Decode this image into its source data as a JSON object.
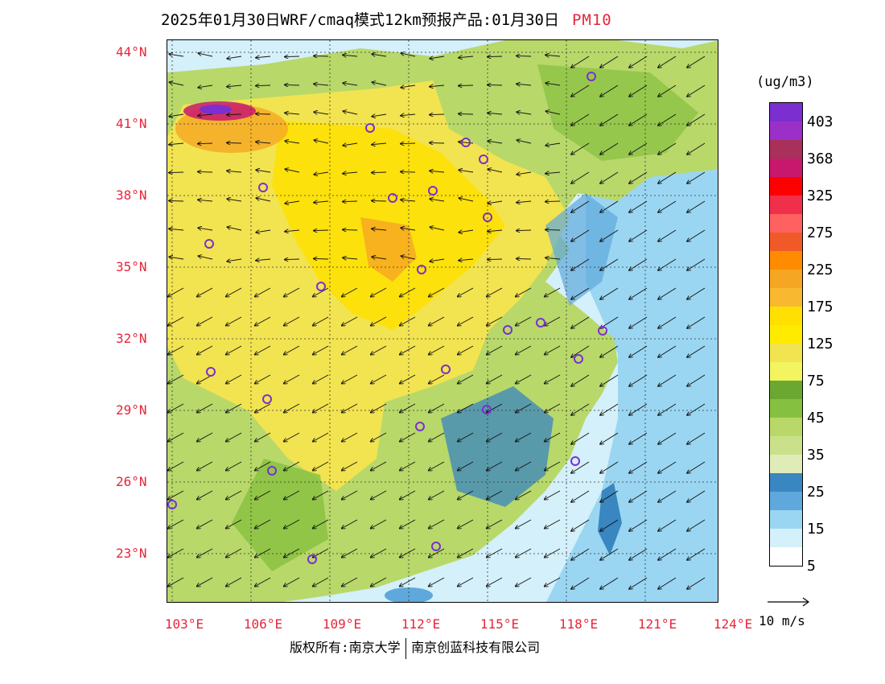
{
  "title": {
    "main": "2025年01月30日WRF/cmaq模式12km预报产品:01月30日",
    "pollutant": "PM10"
  },
  "map": {
    "lat_labels": [
      "44°N",
      "41°N",
      "38°N",
      "35°N",
      "32°N",
      "29°N",
      "26°N",
      "23°N"
    ],
    "lon_labels": [
      "103°E",
      "106°E",
      "109°E",
      "112°E",
      "115°E",
      "118°E",
      "121°E",
      "124°E"
    ],
    "lon_range": [
      103,
      124
    ],
    "lat_range": [
      21,
      44.5
    ]
  },
  "colorbar": {
    "unit": "(ug/m3)",
    "levels": [
      "403",
      "368",
      "325",
      "275",
      "225",
      "175",
      "125",
      "75",
      "45",
      "35",
      "25",
      "15",
      "5"
    ],
    "colors": [
      "#7b2fd0",
      "#9b30c8",
      "#a8305a",
      "#c8186e",
      "#ff0000",
      "#f0304a",
      "#ff6060",
      "#f05a28",
      "#ff8c00",
      "#f5a623",
      "#f8b830",
      "#ffe000",
      "#ffeb00",
      "#f2e350",
      "#f2f560",
      "#6aa832",
      "#86c040",
      "#b8d86a",
      "#cbe08a",
      "#e0ecb8",
      "#3a86c0",
      "#5ea8dc",
      "#9ad6f2",
      "#d4f0fa",
      "#ffffff"
    ]
  },
  "wind_reference": {
    "label": "10 m/s"
  },
  "copyright": {
    "left": "版权所有:南京大学",
    "right": "南京创蓝科技有限公司"
  }
}
